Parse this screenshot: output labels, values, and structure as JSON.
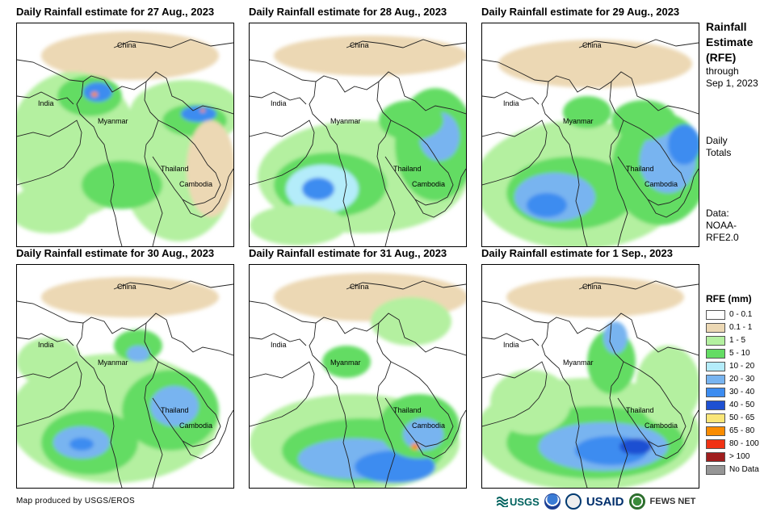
{
  "panels": [
    {
      "title": "Daily Rainfall estimate for 27 Aug., 2023",
      "labels": {
        "china": "China",
        "india": "India",
        "myanmar": "Myanmar",
        "thailand": "Thailand",
        "cambodia": "Cambodia"
      }
    },
    {
      "title": "Daily Rainfall estimate for 28 Aug., 2023",
      "labels": {
        "china": "China",
        "india": "India",
        "myanmar": "Myanmar",
        "thailand": "Thailand",
        "cambodia": "Cambodia"
      }
    },
    {
      "title": "Daily Rainfall estimate for 29 Aug., 2023",
      "labels": {
        "china": "China",
        "india": "India",
        "myanmar": "Myanmar",
        "thailand": "Thailand",
        "cambodia": "Cambodia"
      }
    },
    {
      "title": "Daily Rainfall estimate for 30 Aug., 2023",
      "labels": {
        "china": "China",
        "india": "India",
        "myanmar": "Myanmar",
        "thailand": "Thailand",
        "cambodia": "Cambodia"
      }
    },
    {
      "title": "Daily Rainfall estimate for 31 Aug., 2023",
      "labels": {
        "china": "China",
        "india": "India",
        "myanmar": "Myanmar",
        "thailand": "Thailand",
        "cambodia": "Cambodia"
      }
    },
    {
      "title": "Daily Rainfall estimate for 1 Sep., 2023",
      "labels": {
        "china": "China",
        "india": "India",
        "myanmar": "Myanmar",
        "thailand": "Thailand",
        "cambodia": "Cambodia"
      }
    }
  ],
  "side": {
    "title_line1": "Rainfall",
    "title_line2": "Estimate",
    "title_line3": "(RFE)",
    "through": "through",
    "date": "Sep 1, 2023",
    "daily_line1": "Daily",
    "daily_line2": "Totals",
    "data_line1": "Data:",
    "data_line2": "NOAA-",
    "data_line3": "RFE2.0"
  },
  "legend": {
    "title": "RFE (mm)",
    "items": [
      {
        "label": "0 - 0.1",
        "color": "#ffffff"
      },
      {
        "label": "0.1 - 1",
        "color": "#ecd8b4"
      },
      {
        "label": "1 - 5",
        "color": "#b4f0a0"
      },
      {
        "label": "5 - 10",
        "color": "#64dc64"
      },
      {
        "label": "10 - 20",
        "color": "#b4ecfa"
      },
      {
        "label": "20 - 30",
        "color": "#78b4f0"
      },
      {
        "label": "30 - 40",
        "color": "#3c8cf0"
      },
      {
        "label": "40 - 50",
        "color": "#1e50d2"
      },
      {
        "label": "50 - 65",
        "color": "#fae678"
      },
      {
        "label": "65 - 80",
        "color": "#fa8c00"
      },
      {
        "label": "80 - 100",
        "color": "#f03214"
      },
      {
        "label": "> 100",
        "color": "#a01e1e"
      },
      {
        "label": "No Data",
        "color": "#969696"
      }
    ]
  },
  "credit": "Map produced by USGS/EROS",
  "logos": {
    "usgs": "USGS",
    "usaid": "USAID",
    "fewsnet": "FEWS NET"
  }
}
